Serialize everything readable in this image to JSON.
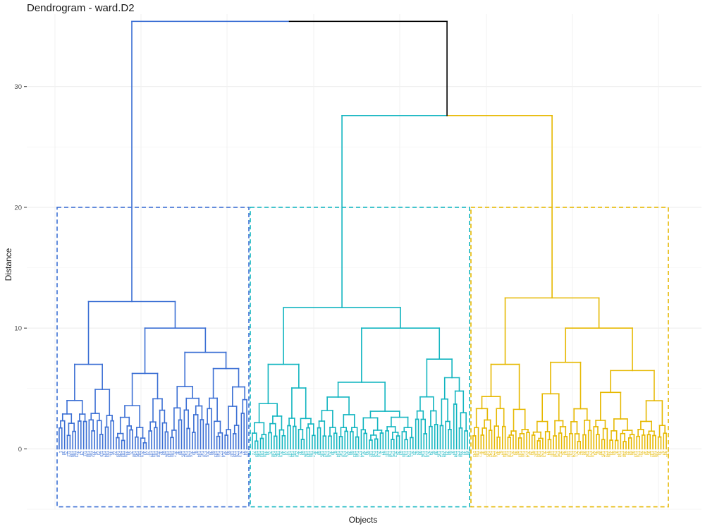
{
  "chart_data": {
    "type": "dendrogram",
    "title": "Dendrogram - ward.D2",
    "xlabel": "Objects",
    "ylabel": "Distance",
    "ylim": [
      -5,
      36
    ],
    "y_ticks": [
      0,
      10,
      20,
      30
    ],
    "grid": true,
    "cut_height": 20,
    "colors": {
      "cluster_1": "#3b6fd4",
      "cluster_2": "#12b5c0",
      "cluster_3": "#e6b800",
      "root": "#000000"
    },
    "root_merge_height": 35.4,
    "merges": [
      {
        "cluster": "cluster_2 + cluster_3",
        "height": 27.6
      },
      {
        "cluster": "cluster_1",
        "height": 12.2
      },
      {
        "cluster": "cluster_2",
        "height": 11.7
      },
      {
        "cluster": "cluster_3",
        "height": 12.5
      }
    ],
    "clusters": [
      {
        "name": "cluster_1",
        "color": "#3b6fd4",
        "leaves": 70,
        "top_height": 12.2
      },
      {
        "name": "cluster_2",
        "color": "#12b5c0",
        "leaves": 80,
        "top_height": 11.7
      },
      {
        "name": "cluster_3",
        "color": "#e6b800",
        "leaves": 73,
        "top_height": 12.5
      }
    ]
  }
}
